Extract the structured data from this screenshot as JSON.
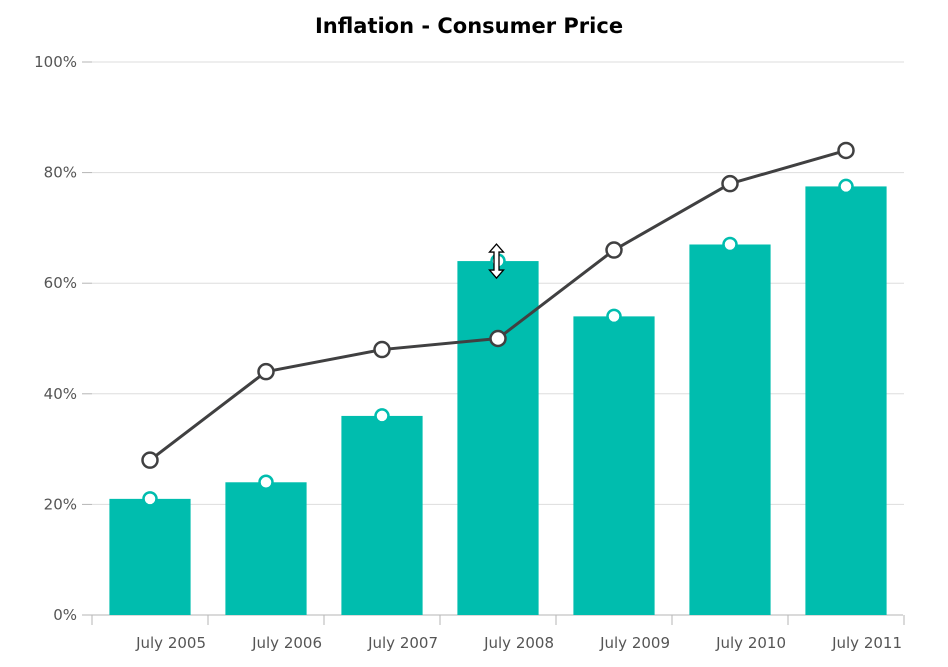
{
  "chart_data": {
    "type": "bar",
    "title": "Inflation - Consumer Price",
    "xlabel": "",
    "ylabel": "",
    "categories": [
      "July 2005",
      "July 2006",
      "July 2007",
      "July 2008",
      "July 2009",
      "July 2010",
      "July 2011"
    ],
    "y_ticks": [
      "0%",
      "20%",
      "40%",
      "60%",
      "80%",
      "100%"
    ],
    "ylim": [
      0,
      100
    ],
    "grid": true,
    "legend": "none",
    "series": [
      {
        "type": "column",
        "color": "#00bdae",
        "marker": "circle",
        "values": [
          21,
          24,
          36,
          64,
          54,
          67,
          77.5
        ]
      },
      {
        "type": "line",
        "color": "#404041",
        "marker": "circle",
        "values": [
          28,
          44,
          48,
          50,
          66,
          78,
          84
        ]
      }
    ]
  },
  "cursor": {
    "icon": "resize-vertical-cursor-icon"
  }
}
